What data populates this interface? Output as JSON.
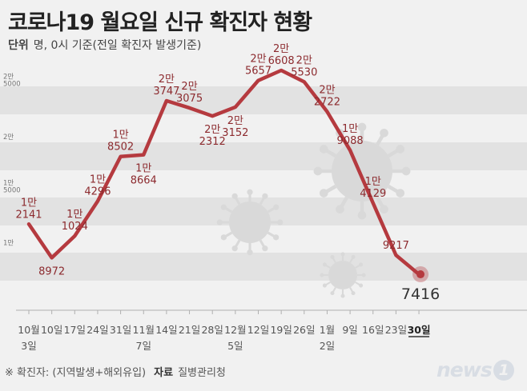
{
  "title": "코로나19 월요일 신규 확진자 현황",
  "unit_label": "단위",
  "unit_text": "명, 0시 기준(전일 확진자 발생기준)",
  "footnote": "※ 확진자: (지역발생+해외유입)",
  "source_label": "자료",
  "source_text": "질병관리청",
  "logo_text": "news",
  "logo_mark": "1",
  "colors": {
    "line": "#b53a3f",
    "label": "#8c2a2e",
    "band_dark": "#e2e2e2",
    "band_light": "#f1f1f1",
    "axis": "#b0b0b0",
    "virus": "#d9d9d9"
  },
  "chart_data": {
    "type": "line",
    "y_tick_labels": [
      {
        "value": 15000,
        "label": "1만\n5000"
      },
      {
        "value": 20000,
        "label": "2만"
      },
      {
        "value": 25000,
        "label": "2만\n5000"
      },
      {
        "value": 10000,
        "label": "1만"
      }
    ],
    "categories": [
      {
        "top": "10월",
        "bottom": "3일"
      },
      {
        "top": "10일",
        "bottom": ""
      },
      {
        "top": "17일",
        "bottom": ""
      },
      {
        "top": "24일",
        "bottom": ""
      },
      {
        "top": "31일",
        "bottom": ""
      },
      {
        "top": "11월",
        "bottom": "7일"
      },
      {
        "top": "14일",
        "bottom": ""
      },
      {
        "top": "21일",
        "bottom": ""
      },
      {
        "top": "28일",
        "bottom": ""
      },
      {
        "top": "12월",
        "bottom": "5일"
      },
      {
        "top": "12일",
        "bottom": ""
      },
      {
        "top": "19일",
        "bottom": ""
      },
      {
        "top": "26일",
        "bottom": ""
      },
      {
        "top": "1월",
        "bottom": "2일"
      },
      {
        "top": "9일",
        "bottom": ""
      },
      {
        "top": "16일",
        "bottom": ""
      },
      {
        "top": "23일",
        "bottom": ""
      },
      {
        "top": "30일",
        "bottom": ""
      }
    ],
    "values": [
      12141,
      8972,
      11024,
      14296,
      18502,
      18664,
      23747,
      23075,
      22312,
      23152,
      25657,
      26608,
      25530,
      22722,
      19088,
      14129,
      9217,
      7416
    ],
    "point_labels": [
      {
        "top": "1만",
        "bottom": "2141",
        "pos": "above"
      },
      {
        "top": "",
        "bottom": "8972",
        "pos": "below"
      },
      {
        "top": "1만",
        "bottom": "1024",
        "pos": "above"
      },
      {
        "top": "1만",
        "bottom": "4296",
        "pos": "above"
      },
      {
        "top": "1만",
        "bottom": "8502",
        "pos": "above"
      },
      {
        "top": "1만",
        "bottom": "8664",
        "pos": "below"
      },
      {
        "top": "2만",
        "bottom": "3747",
        "pos": "above"
      },
      {
        "top": "2만",
        "bottom": "3075",
        "pos": "above"
      },
      {
        "top": "2만",
        "bottom": "2312",
        "pos": "below"
      },
      {
        "top": "2만",
        "bottom": "3152",
        "pos": "below"
      },
      {
        "top": "2만",
        "bottom": "5657",
        "pos": "above"
      },
      {
        "top": "2만",
        "bottom": "6608",
        "pos": "above"
      },
      {
        "top": "2만",
        "bottom": "5530",
        "pos": "above"
      },
      {
        "top": "2만",
        "bottom": "2722",
        "pos": "above"
      },
      {
        "top": "1만",
        "bottom": "9088",
        "pos": "above"
      },
      {
        "top": "1만",
        "bottom": "4129",
        "pos": "above"
      },
      {
        "top": "",
        "bottom": "9217",
        "pos": "above"
      },
      {
        "top": "",
        "bottom": "7416",
        "pos": "final"
      }
    ]
  }
}
